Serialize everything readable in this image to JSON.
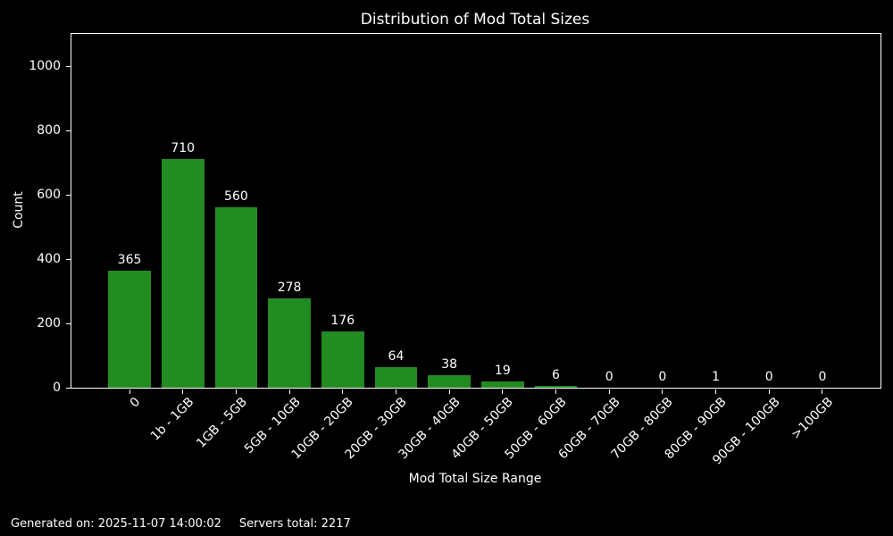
{
  "figure": {
    "background_color": "#000000",
    "text_color": "#ffffff",
    "spine_color": "#ffffff"
  },
  "chart_data": {
    "type": "bar",
    "title": "Distribution of Mod Total Sizes",
    "xlabel": "Mod Total Size Range",
    "ylabel": "Count",
    "categories": [
      "0",
      "1b - 1GB",
      "1GB - 5GB",
      "5GB - 10GB",
      "10GB - 20GB",
      "20GB - 30GB",
      "30GB - 40GB",
      "40GB - 50GB",
      "50GB - 60GB",
      "60GB - 70GB",
      "70GB - 80GB",
      "80GB - 90GB",
      "90GB - 100GB",
      ">100GB"
    ],
    "values": [
      365,
      710,
      560,
      278,
      176,
      64,
      38,
      19,
      6,
      0,
      0,
      1,
      0,
      0
    ],
    "bar_color": "#228B22",
    "bar_labels_shown": true,
    "ylim": [
      0,
      1100
    ],
    "yticks": [
      0,
      200,
      400,
      600,
      800,
      1000
    ],
    "x_tick_rotation": 45,
    "grid": false,
    "legend": null
  },
  "footer": {
    "generated_on": "Generated on: 2025-11-07 14:00:02",
    "servers_total": "Servers total: 2217"
  }
}
